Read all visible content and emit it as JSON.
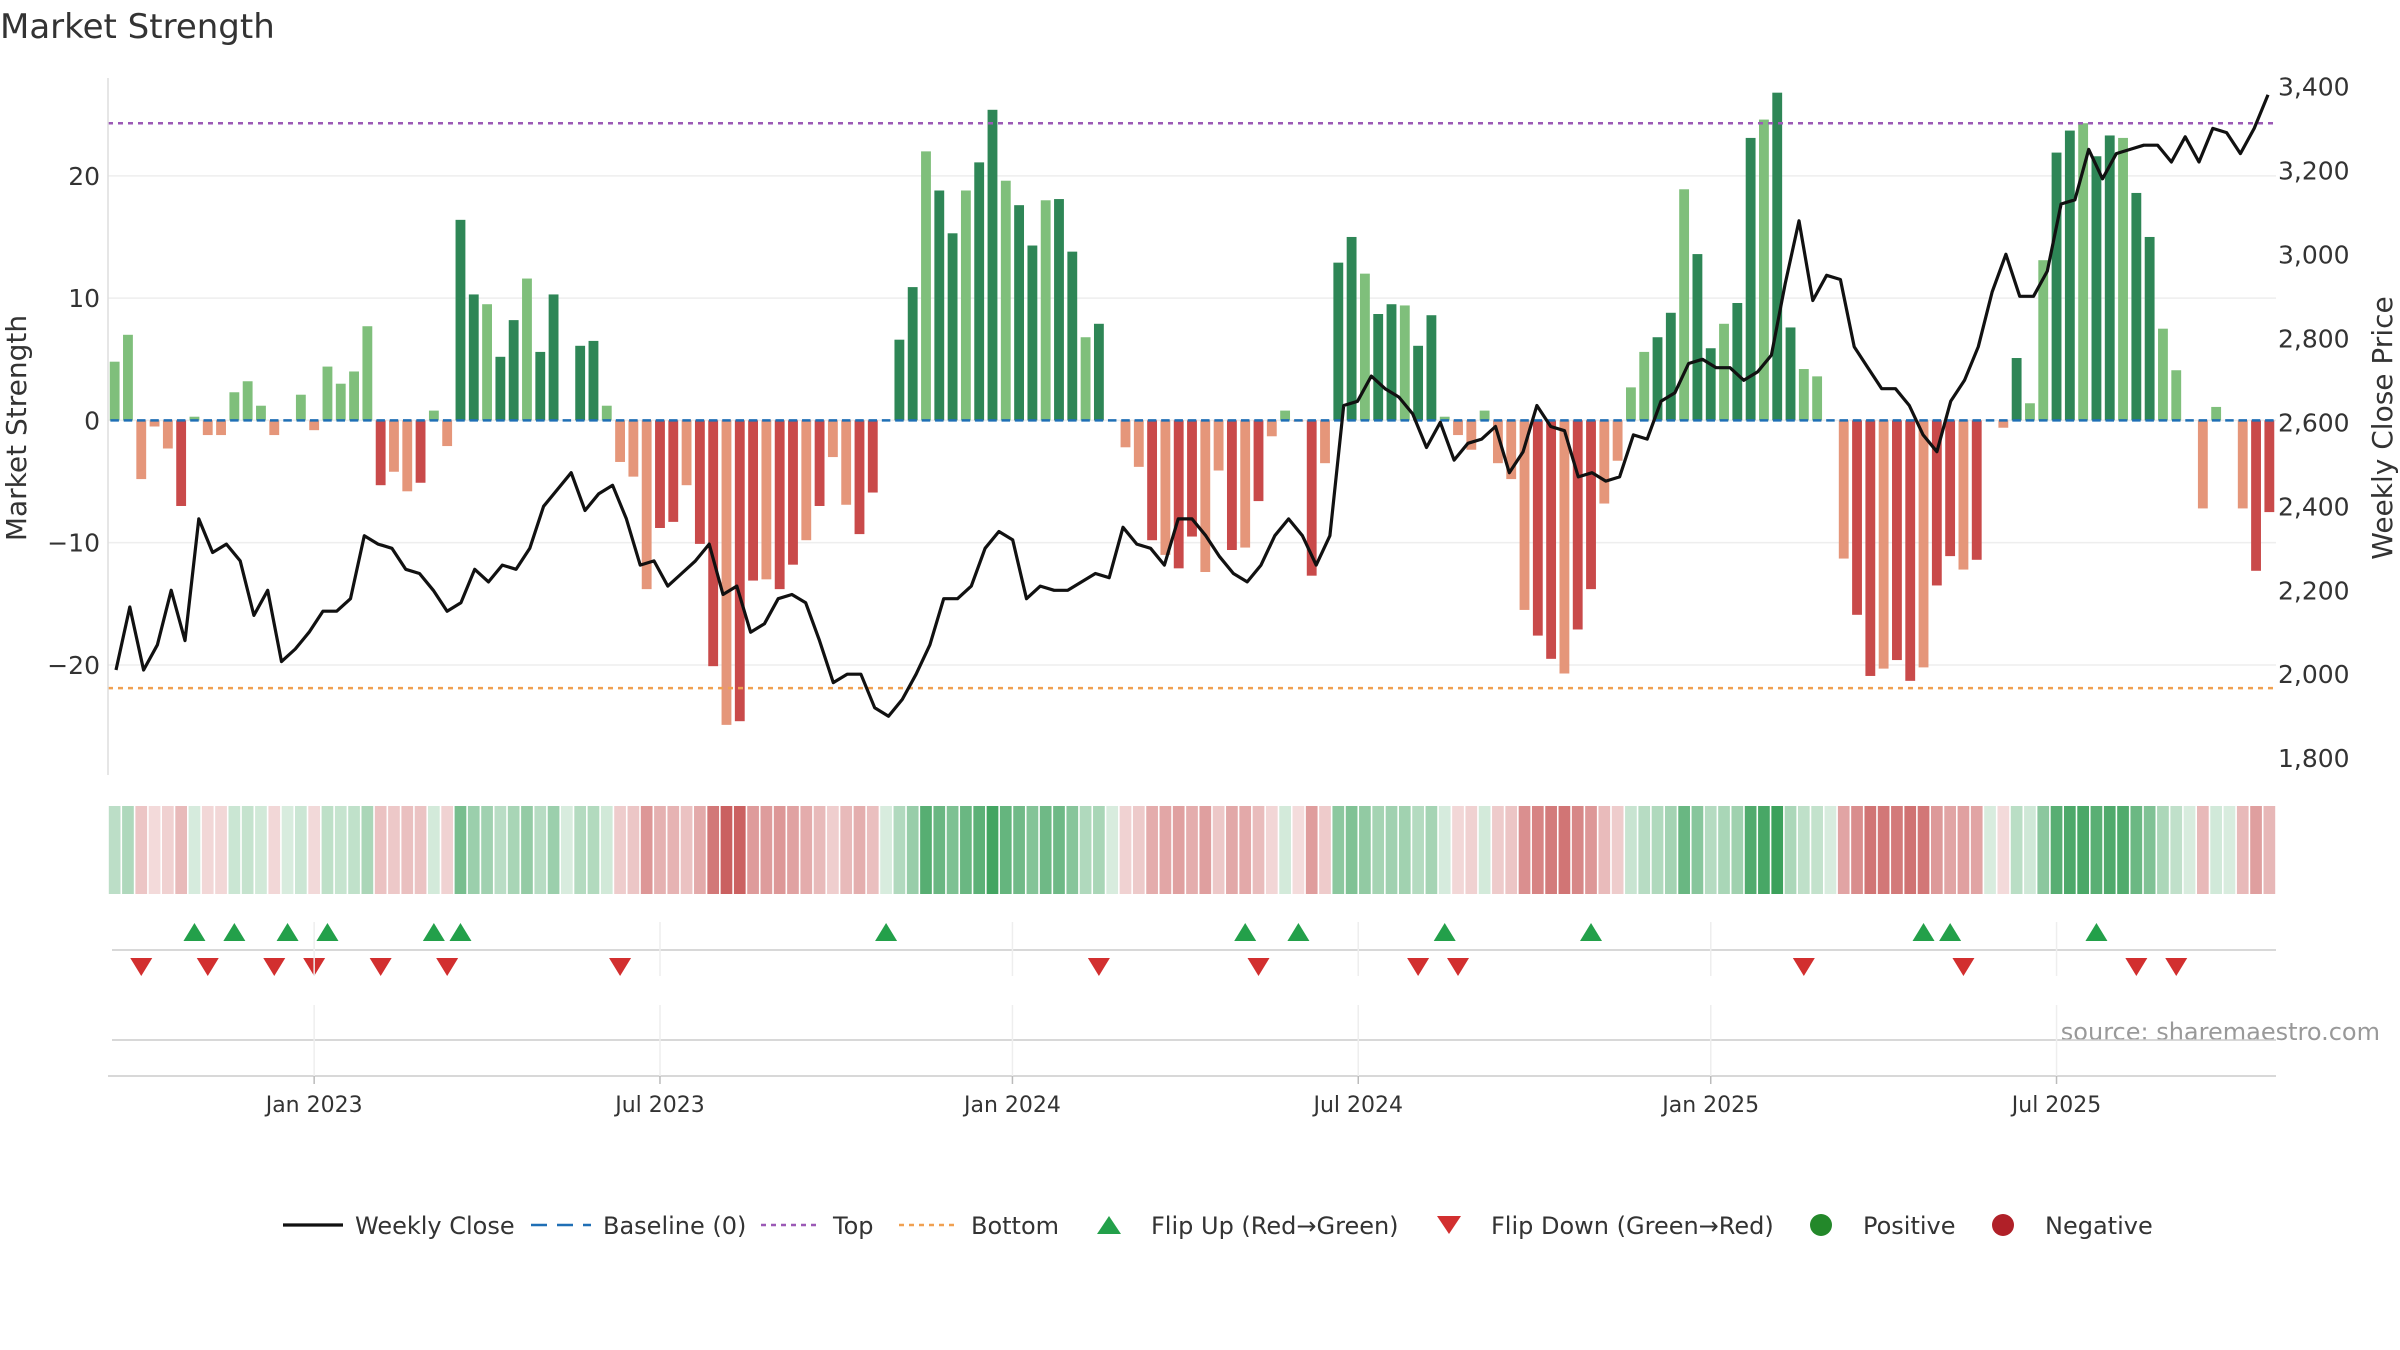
{
  "chart_data": {
    "type": "bar",
    "title": "Market Strength",
    "ylabel_left": "Market Strength",
    "ylabel_right": "Weekly Close Price",
    "source": "source: sharemaestro.com",
    "left_axis": {
      "min": -29,
      "max": 28,
      "ticks": [
        20,
        10,
        0,
        -10,
        -20
      ],
      "tick_labels": [
        "20",
        "10",
        "0",
        "−10",
        "−20"
      ]
    },
    "right_axis": {
      "min": 1760,
      "max": 3420,
      "ticks": [
        3400,
        3200,
        3000,
        2800,
        2600,
        2400,
        2200,
        2000,
        1800
      ],
      "tick_labels": [
        "3,400",
        "3,200",
        "3,000",
        "2,800",
        "2,600",
        "2,400",
        "2,200",
        "2,000",
        "1,800"
      ]
    },
    "top_level": 24.3,
    "bottom_level": -21.9,
    "x_ticks": [
      "Jan 2023",
      "Jul 2023",
      "Jan 2024",
      "Jul 2024",
      "Jan 2025",
      "Jul 2025"
    ],
    "x_tick_index": [
      15,
      41,
      67.5,
      93.5,
      120,
      146
    ],
    "strength": [
      4.8,
      7,
      -4.8,
      -0.5,
      -2.3,
      -7,
      0.3,
      -1.2,
      -1.2,
      2.3,
      3.2,
      1.2,
      -1.2,
      0,
      2.1,
      -0.8,
      4.4,
      3,
      4,
      7.7,
      -5.3,
      -4.2,
      -5.8,
      -5.1,
      0.8,
      -2.1,
      16.4,
      10.3,
      9.5,
      5.2,
      8.2,
      11.6,
      5.6,
      10.3,
      0,
      6.1,
      6.5,
      1.2,
      -3.4,
      -4.6,
      -13.8,
      -8.8,
      -8.3,
      -5.3,
      -10.1,
      -20.1,
      -24.9,
      -24.6,
      -13.1,
      -13,
      -13.8,
      -11.8,
      -9.8,
      -7,
      -3,
      -6.9,
      -9.3,
      -5.9,
      0,
      6.6,
      10.9,
      22,
      18.8,
      15.3,
      18.8,
      21.1,
      25.4,
      19.6,
      17.6,
      14.3,
      18,
      18.1,
      13.8,
      6.8,
      7.9,
      0,
      -2.2,
      -3.8,
      -9.8,
      -11,
      -12.1,
      -9.5,
      -12.4,
      -4.1,
      -10.6,
      -10.4,
      -6.6,
      -1.3,
      0.8,
      -0.1,
      -12.7,
      -3.5,
      12.9,
      15,
      12,
      8.7,
      9.5,
      9.4,
      6.1,
      8.6,
      0.3,
      -1.2,
      -2.4,
      0.8,
      -3.5,
      -4.8,
      -15.5,
      -17.6,
      -19.5,
      -20.7,
      -17.1,
      -13.8,
      -6.8,
      -3.3,
      2.7,
      5.6,
      6.8,
      8.8,
      18.9,
      13.6,
      5.9,
      7.9,
      9.6,
      23.1,
      24.6,
      26.8,
      7.6,
      4.2,
      3.6,
      0,
      -11.3,
      -15.9,
      -20.9,
      -20.3,
      -19.6,
      -21.3,
      -20.2,
      -13.5,
      -11.1,
      -12.2,
      -11.4,
      0,
      -0.6,
      5.1,
      1.4,
      13.1,
      21.9,
      23.7,
      24.3,
      21.6,
      23.3,
      23.1,
      18.6,
      15,
      7.5,
      4.1,
      0,
      -7.2,
      1.1,
      0,
      -7.2,
      -12.3,
      -7.5
    ],
    "weekly_close": [
      2010,
      2160,
      2010,
      2070,
      2200,
      2080,
      2370,
      2290,
      2310,
      2270,
      2140,
      2200,
      2030,
      2060,
      2100,
      2150,
      2150,
      2180,
      2330,
      2310,
      2300,
      2250,
      2240,
      2200,
      2150,
      2170,
      2250,
      2220,
      2260,
      2250,
      2300,
      2400,
      2440,
      2480,
      2390,
      2430,
      2450,
      2370,
      2260,
      2270,
      2210,
      2240,
      2270,
      2310,
      2190,
      2210,
      2100,
      2120,
      2180,
      2190,
      2170,
      2080,
      1980,
      2000,
      2000,
      1920,
      1900,
      1940,
      2000,
      2070,
      2180,
      2180,
      2210,
      2300,
      2340,
      2320,
      2180,
      2210,
      2200,
      2200,
      2220,
      2240,
      2230,
      2350,
      2310,
      2300,
      2260,
      2370,
      2370,
      2330,
      2280,
      2240,
      2220,
      2260,
      2330,
      2370,
      2330,
      2260,
      2330,
      2640,
      2650,
      2710,
      2680,
      2660,
      2620,
      2540,
      2600,
      2510,
      2550,
      2560,
      2590,
      2480,
      2530,
      2640,
      2590,
      2580,
      2470,
      2480,
      2460,
      2470,
      2570,
      2560,
      2650,
      2670,
      2740,
      2750,
      2730,
      2730,
      2700,
      2720,
      2760,
      2930,
      3080,
      2890,
      2950,
      2940,
      2780,
      2730,
      2680,
      2680,
      2640,
      2570,
      2530,
      2650,
      2700,
      2780,
      2910,
      3000,
      2900,
      2900,
      2960,
      3120,
      3130,
      3250,
      3180,
      3240,
      3250,
      3260,
      3260,
      3220,
      3280,
      3220,
      3300,
      3290,
      3240,
      3300,
      3380
    ],
    "flip_up_index": [
      6,
      9,
      13,
      16,
      24,
      26,
      58,
      85,
      89,
      100,
      111,
      136,
      138,
      149
    ],
    "flip_down_index": [
      2,
      7,
      12,
      15,
      20,
      25,
      38,
      74,
      86,
      98,
      101,
      127,
      139,
      152,
      155
    ],
    "legend": [
      {
        "key": "weekly_close",
        "label": "Weekly Close"
      },
      {
        "key": "baseline",
        "label": "Baseline (0)"
      },
      {
        "key": "top",
        "label": "Top"
      },
      {
        "key": "bottom",
        "label": "Bottom"
      },
      {
        "key": "flip_up",
        "label": "Flip Up (Red→Green)"
      },
      {
        "key": "flip_down",
        "label": "Flip Down (Green→Red)"
      },
      {
        "key": "positive",
        "label": "Positive"
      },
      {
        "key": "negative",
        "label": "Negative"
      }
    ],
    "colors": {
      "pos_strong": "#2e8656",
      "pos_weak": "#7fbf7b",
      "neg_strong": "#c94a4a",
      "neg_weak": "#e5967a",
      "line": "#111111",
      "baseline": "#1f6fb5",
      "top": "#9b59b6",
      "bottom": "#f0a050",
      "flip_up": "#23a04a",
      "flip_down": "#d22f2f",
      "positive_dot": "#23882a",
      "negative_dot": "#b02028"
    }
  }
}
